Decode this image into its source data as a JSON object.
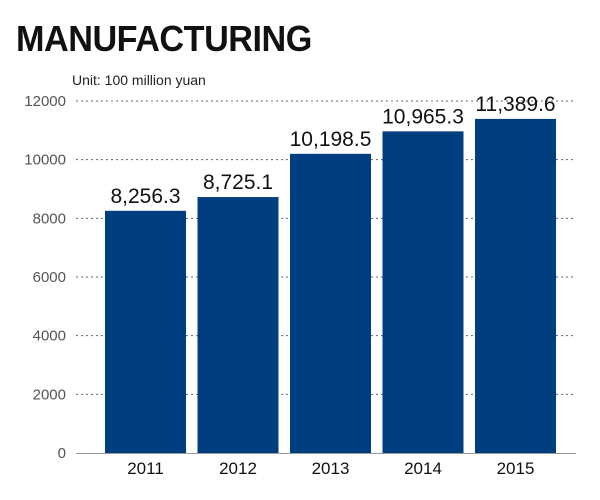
{
  "chart_data": {
    "type": "bar",
    "title": "MANUFACTURING",
    "unit_label": "Unit: 100 million yuan",
    "categories": [
      "2011",
      "2012",
      "2013",
      "2014",
      "2015"
    ],
    "values": [
      8256.3,
      8725.1,
      10198.5,
      10965.3,
      11389.6
    ],
    "data_labels": [
      "8,256.3",
      "8,725.1",
      "10,198.5",
      "10,965.3",
      "11,389.6"
    ],
    "y_ticks": [
      0,
      2000,
      4000,
      6000,
      8000,
      10000,
      12000
    ],
    "ylim": [
      0,
      12000
    ],
    "grid": true,
    "bar_color": "#003f7f"
  }
}
